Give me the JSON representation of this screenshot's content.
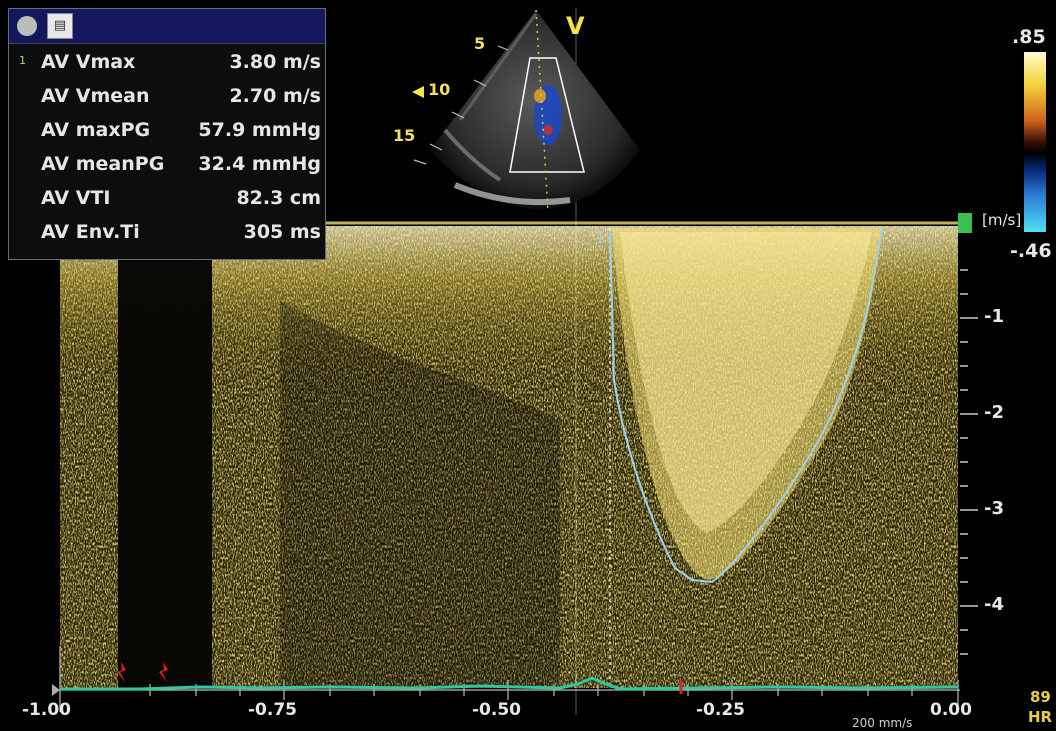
{
  "measurements_panel": {
    "rows": [
      {
        "index": "1",
        "label": "AV Vmax",
        "value": "3.80 m/s"
      },
      {
        "index": "",
        "label": "AV Vmean",
        "value": "2.70 m/s"
      },
      {
        "index": "",
        "label": "AV maxPG",
        "value": "57.9 mmHg"
      },
      {
        "index": "",
        "label": "AV meanPG",
        "value": "32.4 mmHg"
      },
      {
        "index": "",
        "label": "AV VTI",
        "value": "82.3 cm"
      },
      {
        "index": "",
        "label": "AV Env.Ti",
        "value": "305 ms"
      }
    ]
  },
  "image_inset": {
    "view_label": "V",
    "depth_labels": [
      "5",
      "10",
      "15"
    ]
  },
  "color_scale": {
    "top": ".85",
    "bottom": "-.46",
    "unit": "[m/s]"
  },
  "velocity_axis": {
    "ticks": [
      "-1",
      "-2",
      "-3",
      "-4"
    ]
  },
  "time_axis": {
    "ticks": [
      "-1.00",
      "-0.75",
      "-0.50",
      "-0.25",
      "0.00"
    ]
  },
  "sweep_speed": "200 mm/s",
  "heart_rate": {
    "value": "89",
    "label": "HR"
  },
  "trace_marker": "1",
  "colors": {
    "spectrum": "#d8c24a",
    "baseline": "#b9b45a",
    "ecg": "#30c8a0",
    "envelope": "#9fd0ee"
  }
}
